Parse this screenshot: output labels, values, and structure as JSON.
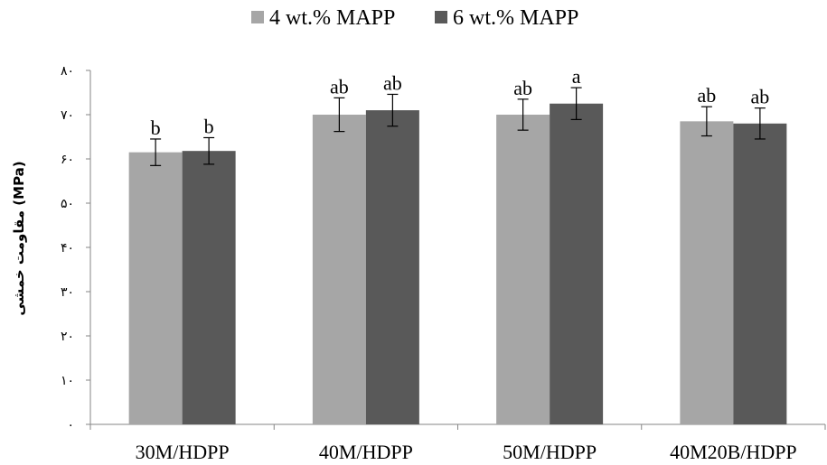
{
  "chart_data": {
    "type": "bar",
    "categories": [
      "30M/HDPP",
      "40M/HDPP",
      "50M/HDPP",
      "40M20B/HDPP"
    ],
    "series": [
      {
        "name": "4 wt.% MAPP",
        "color": "#a6a6a6",
        "values": [
          61.5,
          70.0,
          70.0,
          68.5
        ],
        "errors": [
          3.0,
          3.8,
          3.5,
          3.3
        ],
        "labels": [
          "b",
          "ab",
          "ab",
          "ab"
        ]
      },
      {
        "name": "6 wt.% MAPP",
        "color": "#595959",
        "values": [
          61.8,
          71.0,
          72.5,
          68.0
        ],
        "errors": [
          3.0,
          3.6,
          3.6,
          3.5
        ],
        "labels": [
          "b",
          "ab",
          "a",
          "ab"
        ]
      }
    ],
    "ylabel": "مقاومت خمشی (MPa)",
    "ylim": [
      0,
      80
    ],
    "yticks": [
      0,
      10,
      20,
      30,
      40,
      50,
      60,
      70,
      80
    ],
    "ytick_labels": [
      "۰",
      "۱۰",
      "۲۰",
      "۳۰",
      "۴۰",
      "۵۰",
      "۶۰",
      "۷۰",
      "۸۰"
    ],
    "grid": false,
    "legend_position": "top-center"
  }
}
